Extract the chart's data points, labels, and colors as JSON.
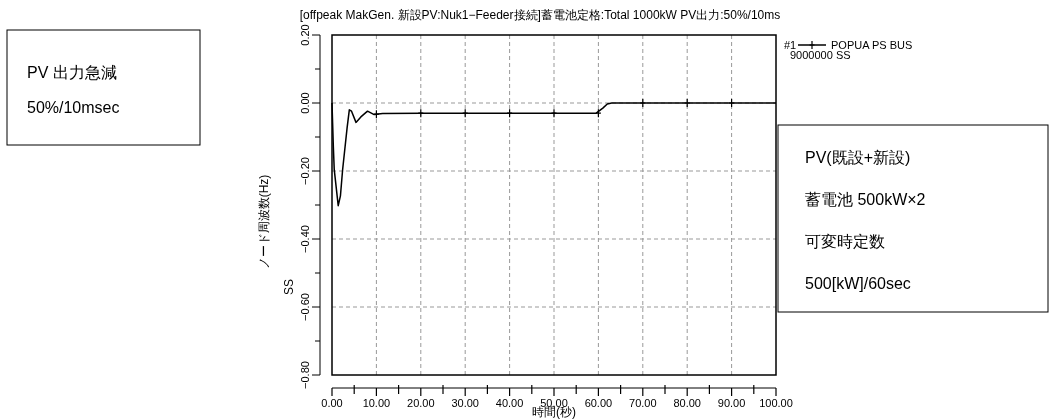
{
  "chart_data": {
    "type": "line",
    "title": "[offpeak MakGen. 新設PV:Nuk1−Feeder接続]蓄電池定格:Total 1000kW PV出力:50%/10ms",
    "xlabel": "時間(秒)",
    "ylabel": "ノード周波数(Hz)",
    "annotations": [
      "PV 出力急減",
      "50%/10msec",
      "PV(既設+新設)",
      "蓄電池 500kW×2",
      "可変時定数",
      "500[kW]/60sec",
      "SS",
      "#1",
      "9000000 SS"
    ],
    "xlim": [
      0,
      100
    ],
    "ylim": [
      -0.8,
      0.2
    ],
    "xticks": [
      {
        "value": 0,
        "label": "0.00"
      },
      {
        "value": 5,
        "label": null
      },
      {
        "value": 10,
        "label": "10.00"
      },
      {
        "value": 15,
        "label": null
      },
      {
        "value": 20,
        "label": "20.00"
      },
      {
        "value": 25,
        "label": null
      },
      {
        "value": 30,
        "label": "30.00"
      },
      {
        "value": 35,
        "label": null
      },
      {
        "value": 40,
        "label": "40.00"
      },
      {
        "value": 45,
        "label": null
      },
      {
        "value": 50,
        "label": "50.00"
      },
      {
        "value": 55,
        "label": null
      },
      {
        "value": 60,
        "label": "60.00"
      },
      {
        "value": 65,
        "label": null
      },
      {
        "value": 70,
        "label": "70.00"
      },
      {
        "value": 75,
        "label": null
      },
      {
        "value": 80,
        "label": "80.00"
      },
      {
        "value": 85,
        "label": null
      },
      {
        "value": 90,
        "label": "90.00"
      },
      {
        "value": 95,
        "label": null
      },
      {
        "value": 100,
        "label": "100.00"
      }
    ],
    "yticks": [
      {
        "value": 0.2,
        "label": "0.20"
      },
      {
        "value": 0.1,
        "label": null
      },
      {
        "value": 0,
        "label": "0.00"
      },
      {
        "value": -0.1,
        "label": null
      },
      {
        "value": -0.2,
        "label": "−0.20"
      },
      {
        "value": -0.3,
        "label": null
      },
      {
        "value": -0.4,
        "label": "−0.40"
      },
      {
        "value": -0.5,
        "label": null
      },
      {
        "value": -0.6,
        "label": "−0.60"
      },
      {
        "value": -0.7,
        "label": null
      },
      {
        "value": -0.8,
        "label": "−0.80"
      }
    ],
    "grid": true,
    "legend": "top right",
    "series": [
      {
        "name": "POPUA PS BUS",
        "color": "#000000",
        "x": [
          0,
          0.3,
          0.5,
          1.4,
          1.9,
          2.4,
          3.4,
          3.9,
          4.4,
          5.4,
          6.5,
          8,
          9.5,
          11.4,
          20,
          30,
          40,
          50,
          59.5,
          61,
          62,
          63,
          70,
          80,
          90,
          100
        ],
        "values": [
          0,
          -0.127,
          -0.195,
          -0.302,
          -0.273,
          -0.195,
          -0.073,
          -0.02,
          -0.024,
          -0.057,
          -0.041,
          -0.024,
          -0.034,
          -0.031,
          -0.03,
          -0.03,
          -0.03,
          -0.03,
          -0.03,
          -0.015,
          -0.003,
          0,
          0,
          0,
          0,
          0
        ]
      },
      {
        "type": "scatter",
        "marker": "cross",
        "color": "#000000",
        "x": [
          10,
          20,
          30,
          40,
          50,
          60,
          70,
          80,
          90
        ],
        "values": [
          -0.033,
          -0.03,
          -0.03,
          -0.03,
          -0.03,
          -0.03,
          0,
          0,
          0
        ]
      }
    ]
  }
}
